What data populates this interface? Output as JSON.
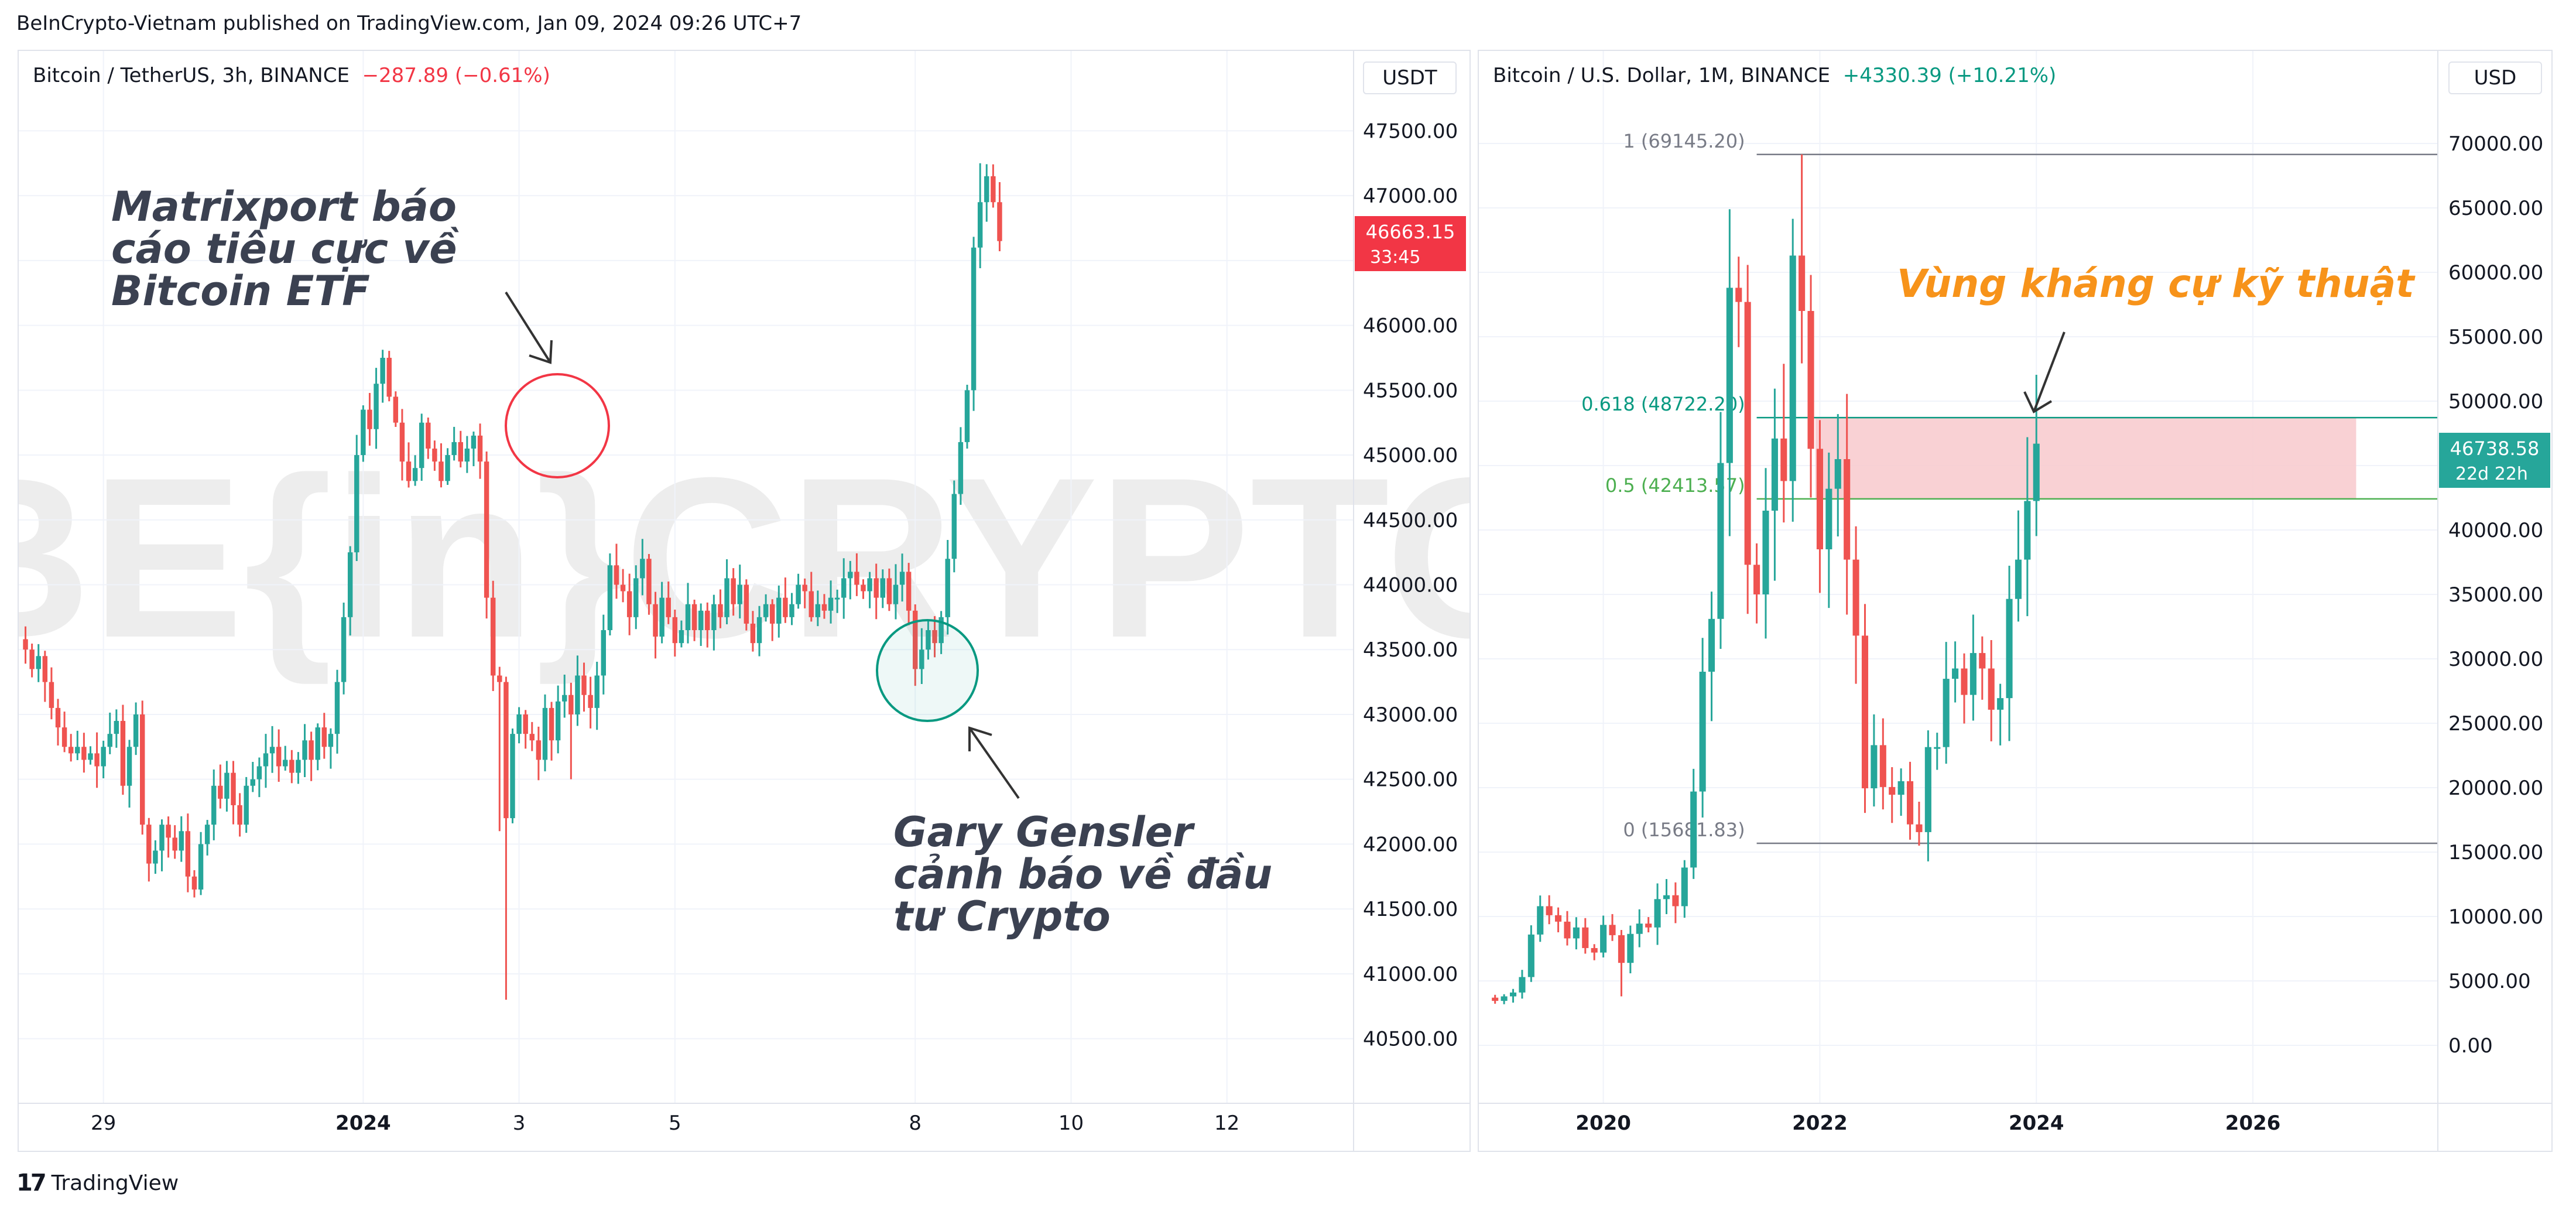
{
  "header": {
    "text": "BeInCrypto-Vietnam published on TradingView.com, Jan 09, 2024 09:26 UTC+7"
  },
  "footer": {
    "brand": "TradingView"
  },
  "watermark": "BE{in}CRYPTO",
  "colors": {
    "up": "#26a69a",
    "down": "#ef5350",
    "label_red": "#f23645",
    "label_green": "#089981",
    "fib": "#089981",
    "fib_mid": "#4caf50",
    "zone": "#f8c9cc",
    "annotation_orange": "#f7931a"
  },
  "left": {
    "symbol": "Bitcoin / TetherUS, 3h, BINANCE",
    "change": "−287.89 (−0.61%)",
    "currency": "USDT",
    "price_label": "46663.15",
    "countdown": "33:45",
    "annotation_1": [
      "Matrixport báo",
      "cáo tiêu cực về",
      "Bitcoin ETF"
    ],
    "annotation_2": [
      "Gary Gensler",
      "cảnh báo về đầu",
      "tư Crypto"
    ]
  },
  "right": {
    "symbol": "Bitcoin / U.S. Dollar, 1M, BINANCE",
    "change": "+4330.39 (+10.21%)",
    "currency": "USD",
    "price_label": "46738.58",
    "countdown": "22d 22h",
    "zone_label": "Vùng kháng cự kỹ thuật"
  },
  "chart_data": [
    {
      "type": "candlestick",
      "title": "Bitcoin / TetherUS, 3h, BINANCE",
      "ylabel": "USDT",
      "ylim": [
        40200,
        47800
      ],
      "y_ticks": [
        "47500.00",
        "47000.00",
        "46500.00",
        "46000.00",
        "45500.00",
        "45000.00",
        "44500.00",
        "44000.00",
        "43500.00",
        "43000.00",
        "42500.00",
        "42000.00",
        "41500.00",
        "41000.00",
        "40500.00"
      ],
      "x_ticks": [
        {
          "label": "29",
          "bar": 12
        },
        {
          "label": "2024",
          "bar": 52
        },
        {
          "label": "3",
          "bar": 76
        },
        {
          "label": "5",
          "bar": 100
        },
        {
          "label": "8",
          "bar": 137
        },
        {
          "label": "10",
          "bar": 161
        },
        {
          "label": "12",
          "bar": 185
        }
      ],
      "bars_total": 205,
      "closes": [
        43500,
        43350,
        43450,
        43250,
        43050,
        42900,
        42750,
        42700,
        42750,
        42650,
        42700,
        42600,
        42750,
        42850,
        42950,
        42450,
        42750,
        43000,
        42150,
        41850,
        41950,
        42150,
        42050,
        41950,
        42100,
        41750,
        41650,
        42000,
        42150,
        42450,
        42350,
        42550,
        42300,
        42150,
        42450,
        42500,
        42600,
        42700,
        42750,
        42600,
        42650,
        42550,
        42650,
        42800,
        42650,
        42900,
        42750,
        42850,
        43250,
        43750,
        44250,
        45000,
        45350,
        45200,
        45550,
        45750,
        45450,
        45250,
        44950,
        44800,
        44900,
        45250,
        45050,
        44950,
        44800,
        45000,
        45100,
        44950,
        45050,
        45150,
        44950,
        43900,
        43300,
        43250,
        42200,
        42850,
        43000,
        42850,
        42800,
        42650,
        43050,
        42800,
        43100,
        43150,
        43000,
        43300,
        43150,
        43050,
        43300,
        43650,
        44150,
        44000,
        43950,
        43750,
        44050,
        44200,
        43850,
        43600,
        43900,
        43750,
        43550,
        43650,
        43850,
        43650,
        43800,
        43650,
        43850,
        43750,
        44050,
        43850,
        44000,
        43700,
        43550,
        43750,
        43850,
        43700,
        43900,
        43750,
        43850,
        44000,
        43950,
        43750,
        43850,
        43800,
        43900,
        43900,
        44050,
        44100,
        44000,
        43950,
        44050,
        43900,
        44050,
        43850,
        44000,
        44100,
        43800,
        43350,
        43500,
        43650,
        43550,
        43750,
        44200,
        44700,
        45100,
        45500,
        46600,
        46950,
        47150,
        46950,
        46650
      ]
    },
    {
      "type": "candlestick",
      "title": "Bitcoin / U.S. Dollar, 1M, BINANCE",
      "ylabel": "USD",
      "ylim": [
        -2500,
        74000
      ],
      "y_ticks": [
        "70000.00",
        "65000.00",
        "60000.00",
        "55000.00",
        "50000.00",
        "45000.00",
        "40000.00",
        "35000.00",
        "30000.00",
        "25000.00",
        "20000.00",
        "15000.00",
        "10000.00",
        "5000.00",
        "0.00"
      ],
      "x_ticks": [
        {
          "label": "2020",
          "month": 12
        },
        {
          "label": "2022",
          "month": 36
        },
        {
          "label": "2024",
          "month": 60
        },
        {
          "label": "2026",
          "month": 84
        }
      ],
      "months_total": 105,
      "start": "2019-01",
      "closes": [
        3450,
        3800,
        4100,
        5300,
        8600,
        10800,
        10100,
        9600,
        8300,
        9150,
        7550,
        7200,
        9350,
        8550,
        6400,
        8650,
        9450,
        9150,
        11350,
        11650,
        10800,
        13800,
        19700,
        29000,
        33100,
        45200,
        58800,
        57700,
        37300,
        35000,
        41500,
        47100,
        43800,
        61300,
        57000,
        46300,
        38500,
        43200,
        45500,
        37700,
        31800,
        19950,
        23300,
        20050,
        19450,
        20500,
        17150,
        16550,
        23150,
        23150,
        28450,
        29250,
        27200,
        30450,
        29250,
        26050,
        26950,
        34650,
        37700,
        42250,
        46700
      ],
      "fib_levels": [
        {
          "label": "1 (69145.20)",
          "value": 69145.2
        },
        {
          "label": "0.618 (48722.20)",
          "value": 48722.2
        },
        {
          "label": "0.5 (42413.57)",
          "value": 42413.57
        },
        {
          "label": "0 (15681.83)",
          "value": 15681.83
        }
      ],
      "resistance_zone": {
        "label": "Vùng kháng cự kỹ thuật",
        "from": 42413.57,
        "to": 48722.2
      }
    }
  ]
}
